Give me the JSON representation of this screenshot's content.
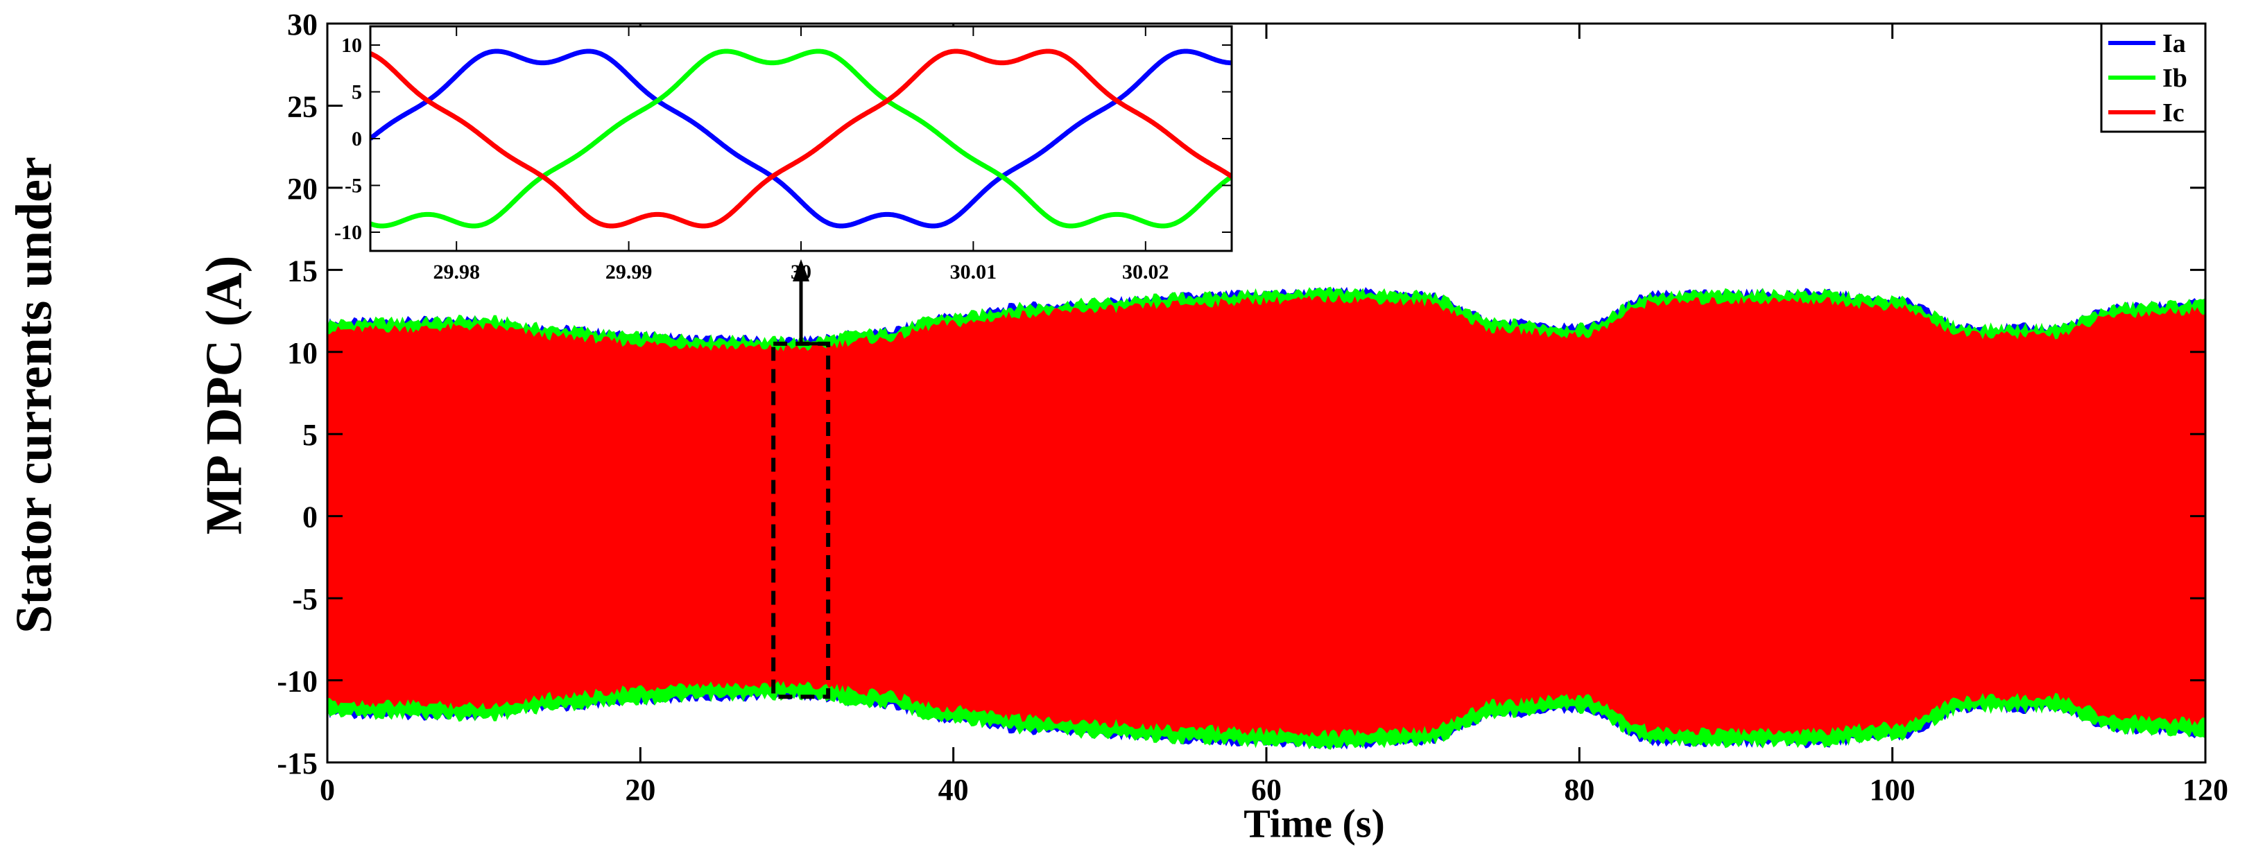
{
  "chart_data": {
    "type": "line",
    "main": {
      "xlabel": "Time (s)",
      "ylabel_line1": "Stator currents under",
      "ylabel_line2": "MP DPC (A)",
      "xlim": [
        0,
        120
      ],
      "ylim": [
        -15,
        30
      ],
      "xticks": [
        0,
        20,
        40,
        60,
        80,
        100,
        120
      ],
      "yticks": [
        -15,
        -10,
        -5,
        0,
        5,
        10,
        15,
        20,
        25,
        30
      ],
      "envelope_time": [
        0,
        5,
        10,
        15,
        20,
        25,
        30,
        35,
        40,
        45,
        50,
        55,
        60,
        65,
        70,
        75,
        80,
        85,
        90,
        95,
        100,
        105,
        110,
        115,
        120
      ],
      "envelope_amplitude": [
        11.2,
        11.3,
        11.4,
        10.8,
        10.4,
        10.2,
        10.1,
        10.6,
        11.6,
        12.2,
        12.5,
        12.8,
        13.0,
        13.1,
        12.9,
        11.2,
        10.9,
        12.9,
        13.0,
        13.0,
        12.6,
        10.9,
        10.9,
        12.2,
        12.4
      ],
      "grid": false
    },
    "inset": {
      "xlim": [
        29.975,
        30.025
      ],
      "ylim": [
        -12,
        12
      ],
      "xticks": [
        29.98,
        29.99,
        30,
        30.01,
        30.02
      ],
      "xtick_labels": [
        "29.98",
        "29.99",
        "30",
        "30.01",
        "30.02"
      ],
      "yticks": [
        -10,
        -5,
        0,
        5,
        10
      ],
      "amplitude": 10,
      "frequency_hz": 25,
      "phase_ref_time": 29.985,
      "zoom_region_x": [
        28.5,
        32
      ],
      "zoom_region_y": [
        -11,
        10.5
      ]
    },
    "legend": {
      "placement": "top-right",
      "entries": [
        "Ia",
        "Ib",
        "Ic"
      ]
    },
    "series": [
      {
        "name": "Ia",
        "color": "#0000ff",
        "phase_deg": 0
      },
      {
        "name": "Ib",
        "color": "#00ff00",
        "phase_deg": -120
      },
      {
        "name": "Ic",
        "color": "#ff0000",
        "phase_deg": 120
      }
    ]
  }
}
